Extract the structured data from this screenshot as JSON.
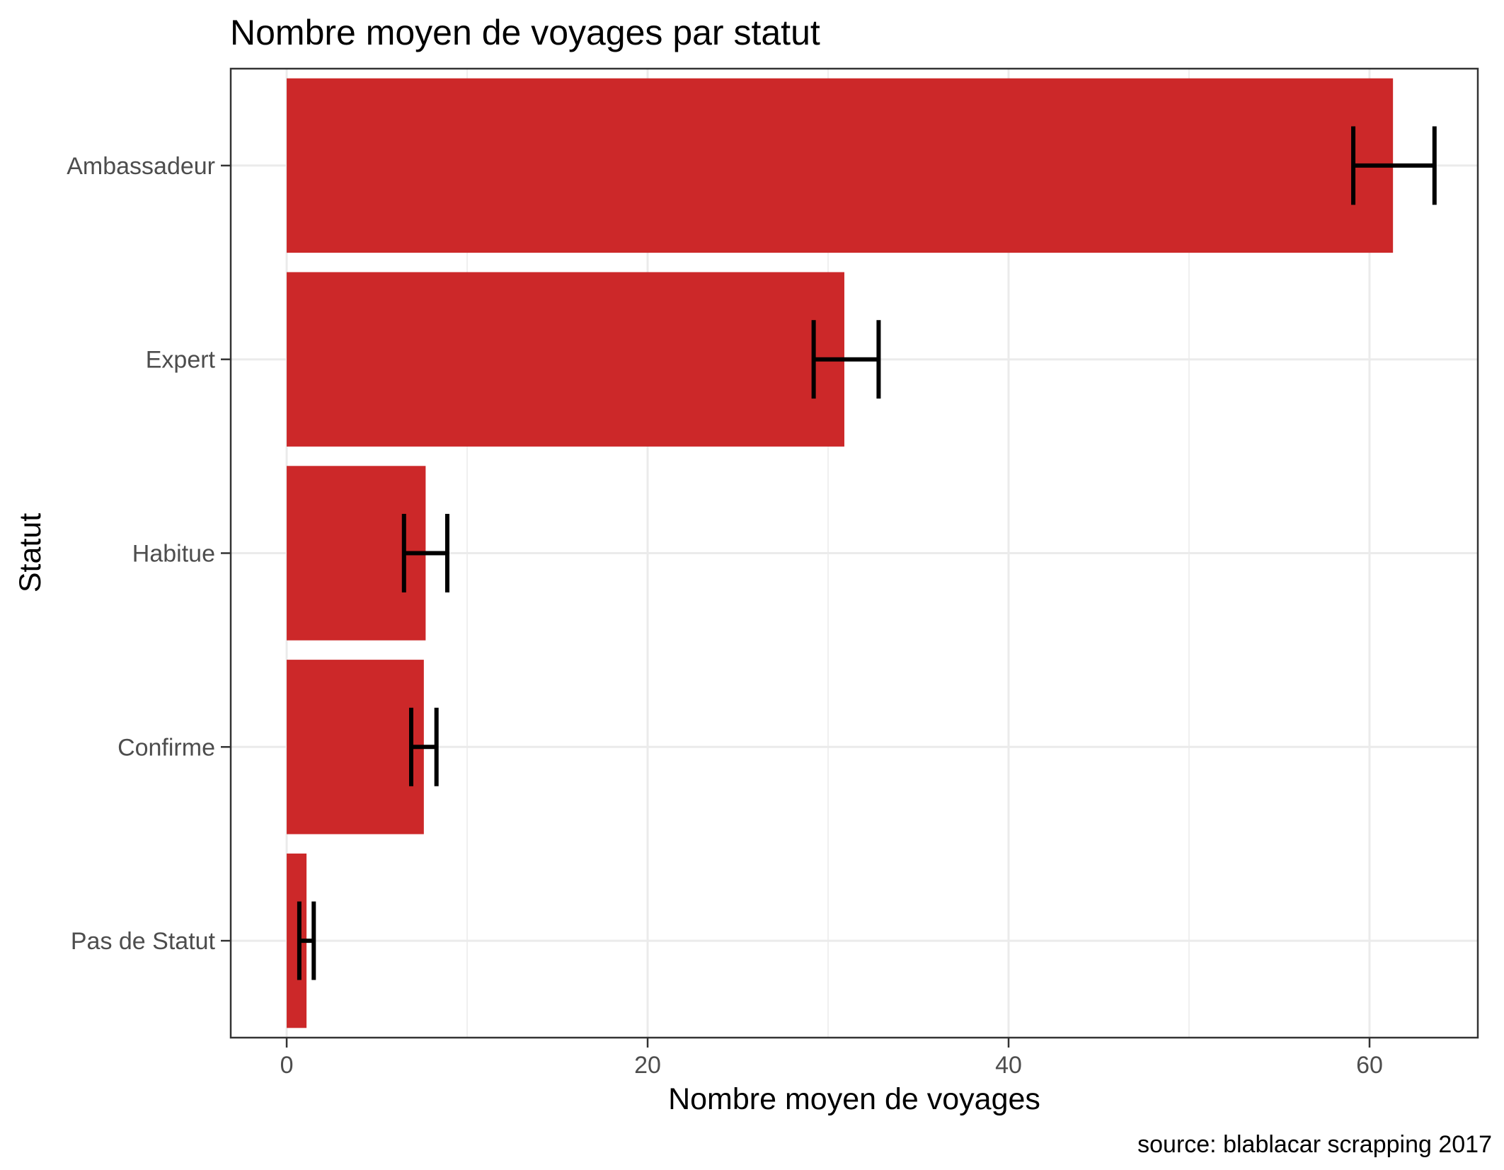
{
  "chart_data": {
    "type": "bar",
    "orientation": "horizontal",
    "title": "Nombre moyen de voyages par statut",
    "xlabel": "Nombre moyen de voyages",
    "ylabel": "Statut",
    "caption": "source: blablacar scrapping 2017",
    "categories": [
      "Ambassadeur",
      "Expert",
      "Habitue",
      "Confirme",
      "Pas de Statut"
    ],
    "values": [
      61.3,
      30.9,
      7.7,
      7.6,
      1.1
    ],
    "error_low": [
      59.1,
      29.2,
      6.5,
      6.9,
      0.7
    ],
    "error_high": [
      63.6,
      32.8,
      8.9,
      8.3,
      1.5
    ],
    "xlim": [
      -3.1,
      66.0
    ],
    "xticks": [
      0,
      20,
      40,
      60
    ],
    "xtick_labels": [
      "0",
      "20",
      "40",
      "60"
    ],
    "grid": true,
    "bar_color": "#cc2829",
    "error_color": "#000000"
  }
}
